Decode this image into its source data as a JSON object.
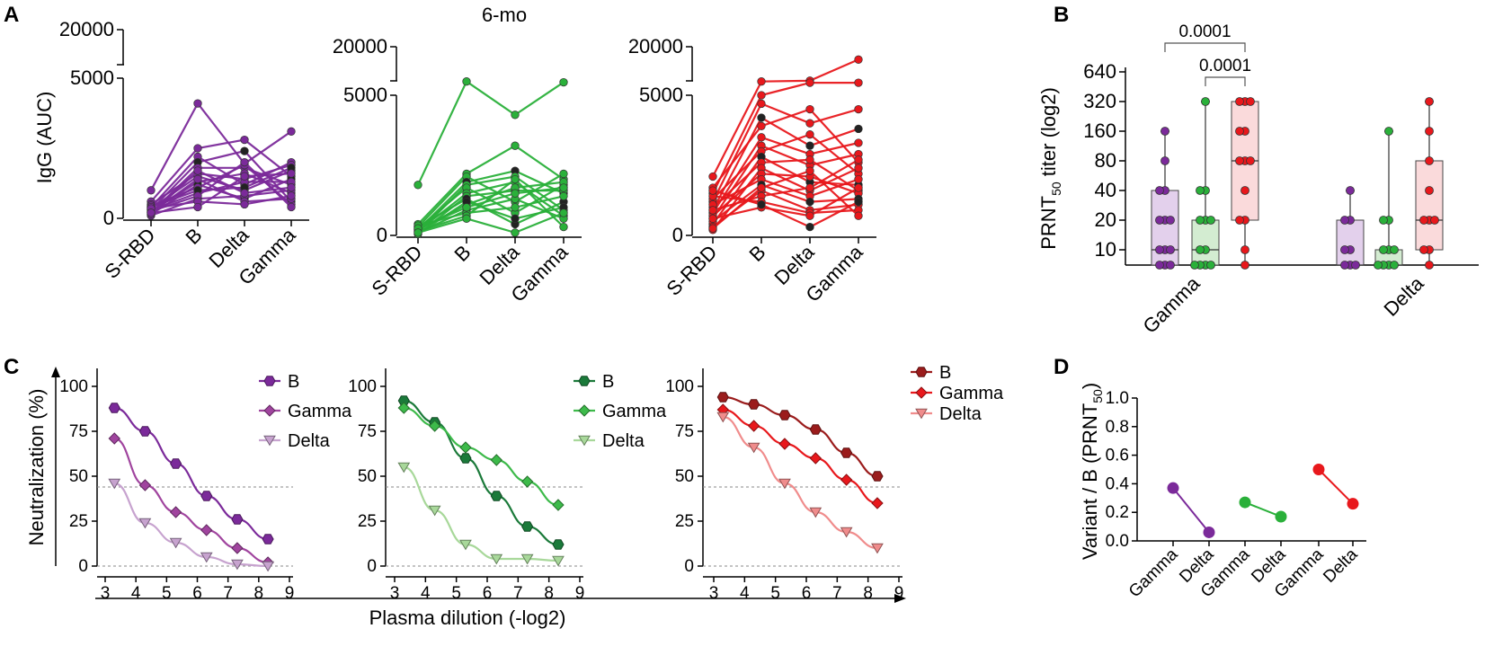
{
  "figure": {
    "panels": [
      "A",
      "B",
      "C",
      "D"
    ],
    "colors": {
      "purple": "#7b2a9a",
      "green": "#2ab03a",
      "red": "#e8181c",
      "black": "#222222"
    }
  },
  "chart_data": [
    {
      "id": "A1",
      "type": "line",
      "title": "",
      "ylabel": "IgG (AUC)",
      "categories": [
        "S-RBD",
        "B",
        "Delta",
        "Gamma"
      ],
      "ytick_labels_upper": [
        "20000"
      ],
      "ytick_labels_lower": [
        "5000",
        "0"
      ],
      "ylim": [
        0,
        20000
      ],
      "axis_break": [
        5000,
        20000
      ],
      "color": "#7b2a9a",
      "series": [
        [
          1000,
          4100,
          1950,
          3100
        ],
        [
          600,
          2500,
          2800,
          1500
        ],
        [
          400,
          2200,
          1200,
          2000
        ],
        [
          300,
          2000,
          2400,
          600
        ],
        [
          200,
          1800,
          1800,
          1200
        ],
        [
          500,
          1600,
          1400,
          1900
        ],
        [
          350,
          1500,
          1000,
          1700
        ],
        [
          250,
          1300,
          1600,
          900
        ],
        [
          150,
          1200,
          700,
          1400
        ],
        [
          450,
          1100,
          1900,
          500
        ],
        [
          300,
          900,
          1300,
          1300
        ],
        [
          100,
          700,
          800,
          1000
        ],
        [
          200,
          1400,
          600,
          700
        ],
        [
          400,
          1000,
          1100,
          1800
        ],
        [
          250,
          800,
          2000,
          400
        ],
        [
          150,
          1700,
          900,
          1100
        ],
        [
          350,
          600,
          500,
          800
        ],
        [
          200,
          400,
          1500,
          1600
        ]
      ]
    },
    {
      "id": "A2",
      "type": "line",
      "title": "6-mo",
      "categories": [
        "S-RBD",
        "B",
        "Delta",
        "Gamma"
      ],
      "ytick_labels_upper": [
        "20000"
      ],
      "ytick_labels_lower": [
        "5000",
        "0"
      ],
      "ylim": [
        0,
        20000
      ],
      "axis_break": [
        5000,
        20000
      ],
      "color": "#2ab03a",
      "series": [
        [
          1800,
          6500,
          4300,
          6200
        ],
        [
          400,
          2200,
          3200,
          2000
        ],
        [
          300,
          2100,
          1200,
          2200
        ],
        [
          200,
          1900,
          2300,
          1500
        ],
        [
          100,
          1800,
          2100,
          900
        ],
        [
          250,
          1700,
          800,
          1800
        ],
        [
          150,
          1500,
          1900,
          700
        ],
        [
          50,
          1400,
          1600,
          1600
        ],
        [
          300,
          1300,
          400,
          1200
        ],
        [
          200,
          1100,
          1700,
          1900
        ],
        [
          100,
          900,
          1300,
          600
        ],
        [
          350,
          800,
          1000,
          1400
        ],
        [
          150,
          700,
          2000,
          300
        ],
        [
          50,
          1200,
          600,
          1000
        ],
        [
          250,
          1000,
          1500,
          1700
        ],
        [
          100,
          600,
          100,
          800
        ]
      ]
    },
    {
      "id": "A3",
      "type": "line",
      "title": "",
      "categories": [
        "S-RBD",
        "B",
        "Delta",
        "Gamma"
      ],
      "ytick_labels_upper": [
        "20000"
      ],
      "ytick_labels_lower": [
        "5000",
        "0"
      ],
      "ylim": [
        0,
        20000
      ],
      "axis_break": [
        5000,
        20000
      ],
      "color": "#e8181c",
      "series": [
        [
          2100,
          6500,
          6800,
          15000
        ],
        [
          1500,
          5000,
          6000,
          6000
        ],
        [
          1200,
          4700,
          4000,
          4500
        ],
        [
          900,
          4200,
          3200,
          3800
        ],
        [
          1700,
          3900,
          4500,
          2600
        ],
        [
          800,
          3500,
          2900,
          3300
        ],
        [
          600,
          3200,
          2500,
          2900
        ],
        [
          1300,
          3000,
          3600,
          2200
        ],
        [
          400,
          2800,
          1900,
          1800
        ],
        [
          1000,
          2600,
          2700,
          1600
        ],
        [
          200,
          2400,
          1600,
          2400
        ],
        [
          700,
          2200,
          2100,
          1500
        ],
        [
          1100,
          2000,
          1400,
          2000
        ],
        [
          500,
          1800,
          1200,
          1300
        ],
        [
          300,
          1600,
          900,
          1100
        ],
        [
          900,
          1400,
          1700,
          2700
        ],
        [
          1400,
          1200,
          800,
          900
        ],
        [
          600,
          1000,
          700,
          1700
        ],
        [
          1600,
          1100,
          300,
          1200
        ],
        [
          250,
          1700,
          2300,
          700
        ]
      ]
    },
    {
      "id": "B",
      "type": "box",
      "ylabel_main": "PRNT",
      "ylabel_sub": "50",
      "ylabel_rest": " titer (log2)",
      "ytick_labels": [
        "10",
        "20",
        "40",
        "80",
        "160",
        "320",
        "640"
      ],
      "ylim": [
        7,
        640
      ],
      "group_labels": [
        "Gamma",
        "Delta"
      ],
      "significance": [
        {
          "from": 0,
          "to": 2,
          "label": "0.0001"
        },
        {
          "from": 1,
          "to": 2,
          "label": "0.0001"
        }
      ],
      "boxes": [
        {
          "group": 0,
          "color": "purple",
          "q1": 7,
          "median": 10,
          "q3": 40,
          "min": 7,
          "max": 160,
          "points": [
            7,
            7,
            7,
            10,
            10,
            10,
            20,
            20,
            20,
            40,
            40,
            80,
            160
          ]
        },
        {
          "group": 0,
          "color": "green",
          "q1": 7,
          "median": 10,
          "q3": 20,
          "min": 7,
          "max": 320,
          "points": [
            7,
            7,
            7,
            7,
            10,
            10,
            20,
            20,
            20,
            40,
            40,
            320
          ]
        },
        {
          "group": 0,
          "color": "red",
          "q1": 20,
          "median": 80,
          "q3": 320,
          "min": 7,
          "max": 320,
          "points": [
            7,
            10,
            20,
            20,
            40,
            80,
            80,
            80,
            160,
            160,
            320,
            320,
            320
          ]
        },
        {
          "group": 1,
          "color": "purple",
          "q1": 7,
          "median": 7,
          "q3": 20,
          "min": 7,
          "max": 40,
          "points": [
            7,
            7,
            7,
            10,
            10,
            20,
            20,
            40
          ]
        },
        {
          "group": 1,
          "color": "green",
          "q1": 7,
          "median": 7,
          "q3": 10,
          "min": 7,
          "max": 160,
          "points": [
            7,
            7,
            7,
            7,
            10,
            10,
            10,
            20,
            20,
            160
          ]
        },
        {
          "group": 1,
          "color": "red",
          "q1": 10,
          "median": 20,
          "q3": 80,
          "min": 7,
          "max": 320,
          "points": [
            7,
            10,
            10,
            20,
            20,
            20,
            40,
            80,
            160,
            320
          ]
        }
      ]
    },
    {
      "id": "C1",
      "type": "line",
      "xlabel": "Plasma dilution (-log2)",
      "ylabel": "Neutralization (%)",
      "xticks": [
        3,
        4,
        5,
        6,
        7,
        8,
        9
      ],
      "yticks": [
        0,
        25,
        50,
        75,
        100
      ],
      "xlim": [
        3,
        9
      ],
      "ylim": [
        0,
        110
      ],
      "threshold": 44,
      "series": [
        {
          "name": "B",
          "marker": "hexagon",
          "color": "#7b2a9a",
          "x": [
            3.3,
            4.3,
            5.3,
            6.3,
            7.3,
            8.3
          ],
          "y": [
            88,
            75,
            57,
            39,
            26,
            15
          ]
        },
        {
          "name": "Gamma",
          "marker": "diamond",
          "color": "#a0449e",
          "x": [
            3.3,
            4.3,
            5.3,
            6.3,
            7.3,
            8.3
          ],
          "y": [
            71,
            45,
            30,
            20,
            10,
            2
          ]
        },
        {
          "name": "Delta",
          "marker": "triangle",
          "color": "#c7a3cf",
          "x": [
            3.3,
            4.3,
            5.3,
            6.3,
            7.3,
            8.3
          ],
          "y": [
            46,
            24,
            13,
            5,
            1,
            0
          ]
        }
      ]
    },
    {
      "id": "C2",
      "type": "line",
      "xticks": [
        3,
        4,
        5,
        6,
        7,
        8,
        9
      ],
      "yticks": [
        0,
        25,
        50,
        75,
        100
      ],
      "xlim": [
        3,
        9
      ],
      "ylim": [
        0,
        110
      ],
      "threshold": 44,
      "series": [
        {
          "name": "B",
          "marker": "hexagon",
          "color": "#1b7a3a",
          "x": [
            3.3,
            4.3,
            5.3,
            6.3,
            7.3,
            8.3
          ],
          "y": [
            92,
            80,
            60,
            39,
            22,
            12
          ]
        },
        {
          "name": "Gamma",
          "marker": "diamond",
          "color": "#3dba4a",
          "x": [
            3.3,
            4.3,
            5.3,
            6.3,
            7.3,
            8.3
          ],
          "y": [
            88,
            78,
            66,
            59,
            47,
            34
          ]
        },
        {
          "name": "Delta",
          "marker": "triangle",
          "color": "#a8d89a",
          "x": [
            3.3,
            4.3,
            5.3,
            6.3,
            7.3,
            8.3
          ],
          "y": [
            55,
            31,
            12,
            4,
            4,
            3
          ]
        }
      ]
    },
    {
      "id": "C3",
      "type": "line",
      "xticks": [
        3,
        4,
        5,
        6,
        7,
        8,
        9
      ],
      "yticks": [
        0,
        25,
        50,
        75,
        100
      ],
      "xlim": [
        3,
        9
      ],
      "ylim": [
        0,
        110
      ],
      "threshold": 44,
      "series": [
        {
          "name": "B",
          "marker": "hexagon",
          "color": "#9b1c1c",
          "x": [
            3.3,
            4.3,
            5.3,
            6.3,
            7.3,
            8.3
          ],
          "y": [
            94,
            90,
            84,
            76,
            63,
            50
          ]
        },
        {
          "name": "Gamma",
          "marker": "diamond",
          "color": "#e8181c",
          "x": [
            3.3,
            4.3,
            5.3,
            6.3,
            7.3,
            8.3
          ],
          "y": [
            87,
            78,
            68,
            60,
            48,
            35
          ]
        },
        {
          "name": "Delta",
          "marker": "triangle",
          "color": "#f08c8c",
          "x": [
            3.3,
            4.3,
            5.3,
            6.3,
            7.3,
            8.3
          ],
          "y": [
            83,
            66,
            46,
            30,
            19,
            10
          ]
        }
      ]
    },
    {
      "id": "D",
      "type": "scatter",
      "ylabel_main": "Variant / B (PRNT",
      "ylabel_sub": "50",
      "ylabel_rest": ")",
      "yticks": [
        "0.0",
        "0.2",
        "0.4",
        "0.6",
        "0.8",
        "1.0"
      ],
      "ylim": [
        0,
        1
      ],
      "categories": [
        "Gamma",
        "Delta",
        "Gamma",
        "Delta",
        "Gamma",
        "Delta"
      ],
      "pairs": [
        {
          "color": "#7b2a9a",
          "values": [
            0.37,
            0.06
          ]
        },
        {
          "color": "#2ab03a",
          "values": [
            0.27,
            0.17
          ]
        },
        {
          "color": "#e8181c",
          "values": [
            0.5,
            0.26
          ]
        }
      ]
    }
  ]
}
